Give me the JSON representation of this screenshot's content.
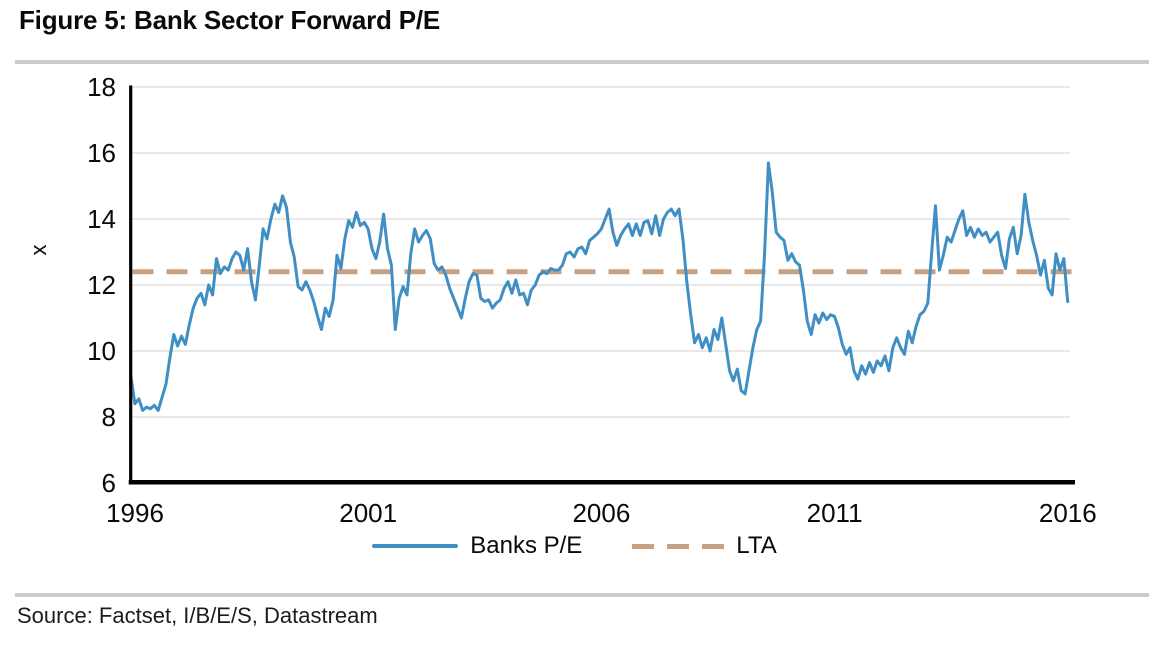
{
  "figure": {
    "title": "Figure 5: Bank Sector Forward P/E",
    "source": "Source: Factset, I/B/E/S, Datastream"
  },
  "chart_data": {
    "type": "line",
    "title": "Figure 5: Bank Sector Forward P/E",
    "xlabel": "",
    "ylabel": "x",
    "ylim": [
      6,
      18
    ],
    "xlim": [
      1996,
      2016.24
    ],
    "y_ticks": [
      6,
      8,
      10,
      12,
      14,
      16,
      18
    ],
    "x_ticks": [
      1996,
      2001,
      2006,
      2011,
      2016
    ],
    "grid": "horizontal",
    "legend_position": "bottom-center",
    "colors": {
      "banks_pe": "#3F8FC5",
      "lta": "#C8A183",
      "gridline": "#D9D9D9",
      "axis": "#000000"
    },
    "series": [
      {
        "name": "Banks P/E",
        "type": "line",
        "color": "#3F8FC5",
        "x_start": 1996.0,
        "x_step": 0.0833333333,
        "values": [
          9.2,
          8.4,
          8.55,
          8.2,
          8.3,
          8.25,
          8.35,
          8.2,
          8.6,
          9.0,
          9.8,
          10.5,
          10.15,
          10.45,
          10.2,
          10.8,
          11.3,
          11.6,
          11.75,
          11.4,
          12.0,
          11.7,
          12.8,
          12.35,
          12.55,
          12.45,
          12.8,
          13.0,
          12.9,
          12.45,
          13.1,
          12.1,
          11.55,
          12.6,
          13.7,
          13.4,
          14.0,
          14.45,
          14.2,
          14.7,
          14.35,
          13.3,
          12.85,
          11.95,
          11.85,
          12.1,
          11.85,
          11.5,
          11.05,
          10.65,
          11.3,
          11.05,
          11.55,
          12.9,
          12.5,
          13.4,
          13.95,
          13.75,
          14.2,
          13.8,
          13.9,
          13.7,
          13.1,
          12.8,
          13.3,
          14.15,
          13.1,
          12.6,
          10.65,
          11.6,
          11.95,
          11.7,
          12.95,
          13.7,
          13.3,
          13.5,
          13.65,
          13.4,
          12.65,
          12.45,
          12.55,
          12.3,
          11.9,
          11.6,
          11.3,
          11.0,
          11.6,
          12.1,
          12.35,
          12.3,
          11.6,
          11.5,
          11.55,
          11.3,
          11.45,
          11.55,
          11.9,
          12.1,
          11.75,
          12.15,
          11.7,
          11.75,
          11.4,
          11.85,
          12.0,
          12.3,
          12.4,
          12.35,
          12.5,
          12.45,
          12.45,
          12.6,
          12.95,
          13.0,
          12.85,
          13.1,
          13.15,
          12.95,
          13.35,
          13.45,
          13.55,
          13.7,
          14.0,
          14.3,
          13.6,
          13.2,
          13.5,
          13.7,
          13.85,
          13.5,
          13.85,
          13.5,
          13.9,
          13.95,
          13.55,
          14.1,
          13.5,
          14.0,
          14.2,
          14.3,
          14.1,
          14.3,
          13.4,
          12.1,
          11.1,
          10.25,
          10.5,
          10.1,
          10.4,
          10.0,
          10.65,
          10.35,
          11.0,
          10.2,
          9.4,
          9.1,
          9.45,
          8.8,
          8.7,
          9.4,
          10.1,
          10.65,
          10.9,
          12.9,
          15.7,
          14.8,
          13.6,
          13.45,
          13.35,
          12.75,
          12.95,
          12.7,
          12.6,
          11.85,
          10.9,
          10.5,
          11.1,
          10.85,
          11.15,
          10.95,
          11.1,
          11.05,
          10.7,
          10.2,
          9.9,
          10.1,
          9.4,
          9.15,
          9.55,
          9.3,
          9.65,
          9.35,
          9.7,
          9.55,
          9.85,
          9.4,
          10.1,
          10.4,
          10.1,
          9.9,
          10.6,
          10.25,
          10.75,
          11.1,
          11.2,
          11.45,
          13.0,
          14.4,
          12.45,
          12.9,
          13.45,
          13.3,
          13.65,
          14.0,
          14.25,
          13.5,
          13.75,
          13.45,
          13.7,
          13.5,
          13.6,
          13.3,
          13.45,
          13.6,
          12.9,
          12.5,
          13.4,
          13.75,
          12.95,
          13.5,
          14.75,
          13.9,
          13.35,
          12.9,
          12.3,
          12.75,
          11.9,
          11.7,
          12.95,
          12.45,
          12.8,
          11.5
        ]
      },
      {
        "name": "LTA",
        "type": "dashed-horizontal-line",
        "color": "#C8A183",
        "value": 12.4
      }
    ]
  }
}
